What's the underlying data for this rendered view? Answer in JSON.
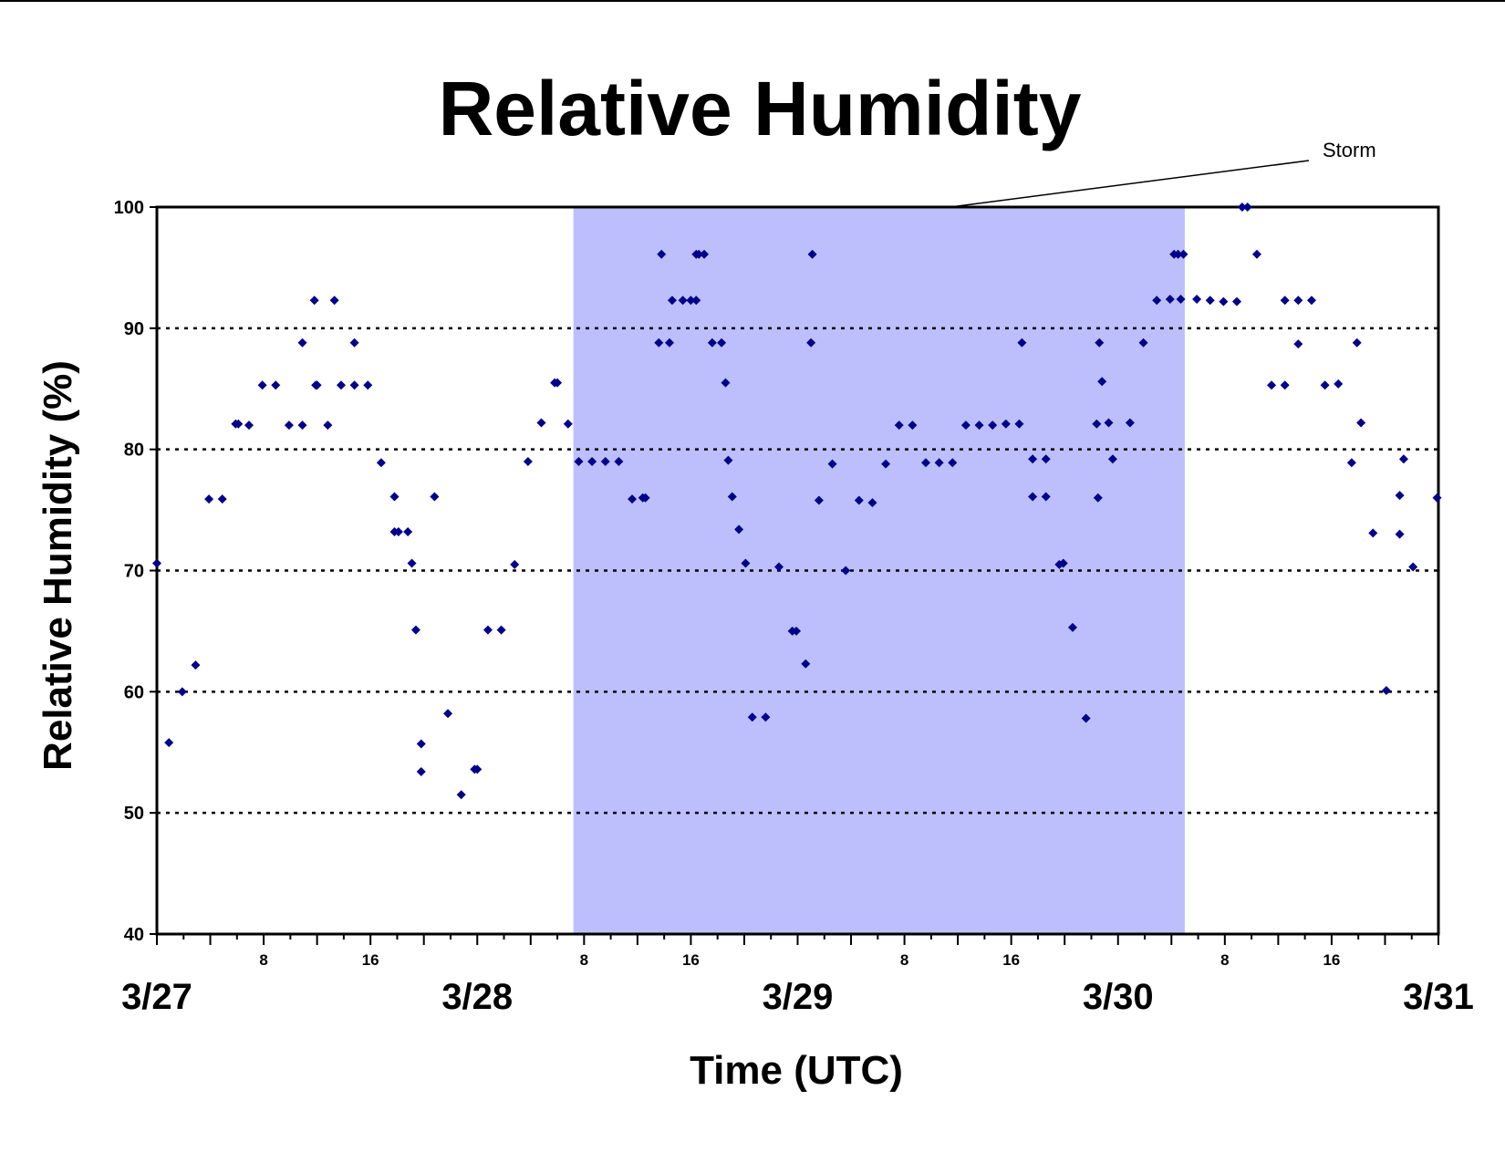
{
  "chart_data": {
    "type": "scatter",
    "title": "Relative Humidity",
    "xlabel": "Time (UTC)",
    "ylabel": "Relative Humidity (%)",
    "ylim": [
      40,
      100
    ],
    "yticks": [
      40,
      50,
      60,
      70,
      80,
      90,
      100
    ],
    "xlim_hours": [
      0,
      96
    ],
    "date_labels": [
      {
        "label": "3/27",
        "hour": 0
      },
      {
        "label": "3/28",
        "hour": 24
      },
      {
        "label": "3/29",
        "hour": 48
      },
      {
        "label": "3/30",
        "hour": 72
      },
      {
        "label": "3/31",
        "hour": 96
      }
    ],
    "hour_tick_labels": [
      {
        "label": "8",
        "hour": 8
      },
      {
        "label": "16",
        "hour": 16
      },
      {
        "label": "8",
        "hour": 32
      },
      {
        "label": "16",
        "hour": 40
      },
      {
        "label": "8",
        "hour": 56
      },
      {
        "label": "16",
        "hour": 64
      },
      {
        "label": "8",
        "hour": 80
      },
      {
        "label": "16",
        "hour": 88
      }
    ],
    "grid": "horizontal dotted at 50, 60, 70, 80, 90",
    "marker_color": "#00008B",
    "highlight": {
      "label": "Storm",
      "start_hour": 31.2,
      "end_hour": 77,
      "color": "#BCBFFB"
    },
    "points": [
      [
        0.0,
        70.6
      ],
      [
        0.9,
        55.8
      ],
      [
        1.9,
        60.0
      ],
      [
        2.9,
        62.2
      ],
      [
        3.9,
        75.9
      ],
      [
        4.9,
        75.9
      ],
      [
        5.9,
        82.1
      ],
      [
        6.1,
        82.1
      ],
      [
        6.9,
        82.0
      ],
      [
        7.9,
        85.3
      ],
      [
        8.9,
        85.3
      ],
      [
        9.9,
        82.0
      ],
      [
        10.9,
        82.0
      ],
      [
        10.9,
        88.8
      ],
      [
        11.8,
        92.3
      ],
      [
        11.9,
        85.3
      ],
      [
        12.0,
        85.3
      ],
      [
        12.8,
        82.0
      ],
      [
        13.3,
        92.3
      ],
      [
        13.8,
        85.3
      ],
      [
        14.8,
        88.8
      ],
      [
        14.8,
        85.3
      ],
      [
        15.8,
        85.3
      ],
      [
        16.8,
        78.9
      ],
      [
        17.8,
        76.1
      ],
      [
        17.8,
        73.2
      ],
      [
        18.1,
        73.2
      ],
      [
        18.8,
        73.2
      ],
      [
        19.1,
        70.6
      ],
      [
        19.4,
        65.1
      ],
      [
        19.8,
        55.7
      ],
      [
        19.8,
        53.4
      ],
      [
        20.8,
        76.1
      ],
      [
        21.8,
        58.2
      ],
      [
        22.8,
        51.5
      ],
      [
        23.8,
        53.6
      ],
      [
        24.0,
        53.6
      ],
      [
        24.8,
        65.1
      ],
      [
        25.8,
        65.1
      ],
      [
        26.8,
        70.5
      ],
      [
        27.8,
        79.0
      ],
      [
        28.8,
        82.2
      ],
      [
        29.8,
        85.5
      ],
      [
        30.0,
        85.5
      ],
      [
        30.8,
        82.1
      ],
      [
        31.6,
        79.0
      ],
      [
        32.6,
        79.0
      ],
      [
        33.6,
        79.0
      ],
      [
        34.6,
        79.0
      ],
      [
        35.6,
        75.9
      ],
      [
        36.4,
        76.0
      ],
      [
        36.6,
        76.0
      ],
      [
        37.6,
        88.8
      ],
      [
        37.8,
        96.1
      ],
      [
        38.4,
        88.8
      ],
      [
        38.6,
        92.3
      ],
      [
        39.4,
        92.3
      ],
      [
        40.0,
        92.3
      ],
      [
        40.4,
        92.3
      ],
      [
        40.4,
        96.1
      ],
      [
        40.6,
        96.1
      ],
      [
        41.0,
        96.1
      ],
      [
        41.6,
        88.8
      ],
      [
        42.3,
        88.8
      ],
      [
        42.6,
        85.5
      ],
      [
        42.8,
        79.1
      ],
      [
        43.1,
        76.1
      ],
      [
        43.6,
        73.4
      ],
      [
        44.1,
        70.6
      ],
      [
        44.6,
        57.9
      ],
      [
        45.6,
        57.9
      ],
      [
        46.6,
        70.3
      ],
      [
        47.6,
        65.0
      ],
      [
        47.9,
        65.0
      ],
      [
        48.6,
        62.3
      ],
      [
        49.0,
        88.8
      ],
      [
        49.1,
        96.1
      ],
      [
        49.6,
        75.8
      ],
      [
        50.6,
        78.8
      ],
      [
        51.6,
        70.0
      ],
      [
        52.6,
        75.8
      ],
      [
        53.6,
        75.6
      ],
      [
        54.6,
        78.8
      ],
      [
        55.6,
        82.0
      ],
      [
        56.6,
        82.0
      ],
      [
        57.6,
        78.9
      ],
      [
        58.6,
        78.9
      ],
      [
        59.6,
        78.9
      ],
      [
        60.6,
        82.0
      ],
      [
        61.6,
        82.0
      ],
      [
        62.6,
        82.0
      ],
      [
        63.6,
        82.1
      ],
      [
        64.6,
        82.1
      ],
      [
        64.8,
        88.8
      ],
      [
        65.6,
        79.2
      ],
      [
        65.6,
        76.1
      ],
      [
        66.6,
        79.2
      ],
      [
        66.6,
        76.1
      ],
      [
        67.6,
        70.5
      ],
      [
        67.9,
        70.6
      ],
      [
        68.6,
        65.3
      ],
      [
        69.6,
        57.8
      ],
      [
        70.4,
        82.1
      ],
      [
        70.5,
        76.0
      ],
      [
        70.6,
        88.8
      ],
      [
        70.8,
        85.6
      ],
      [
        71.3,
        82.2
      ],
      [
        71.6,
        79.2
      ],
      [
        72.9,
        82.2
      ],
      [
        73.9,
        88.8
      ],
      [
        74.9,
        92.3
      ],
      [
        75.9,
        92.4
      ],
      [
        76.2,
        96.1
      ],
      [
        76.5,
        96.1
      ],
      [
        76.7,
        92.4
      ],
      [
        76.9,
        96.1
      ],
      [
        77.9,
        92.4
      ],
      [
        78.9,
        92.3
      ],
      [
        79.9,
        92.2
      ],
      [
        80.9,
        92.2
      ],
      [
        81.3,
        100.0
      ],
      [
        81.7,
        100.0
      ],
      [
        82.4,
        96.1
      ],
      [
        83.5,
        85.3
      ],
      [
        84.5,
        85.3
      ],
      [
        84.5,
        92.3
      ],
      [
        85.5,
        88.7
      ],
      [
        85.5,
        92.3
      ],
      [
        86.5,
        92.3
      ],
      [
        87.5,
        85.3
      ],
      [
        88.5,
        85.4
      ],
      [
        89.5,
        78.9
      ],
      [
        89.9,
        88.8
      ],
      [
        90.2,
        82.2
      ],
      [
        91.1,
        73.1
      ],
      [
        92.1,
        60.1
      ],
      [
        93.1,
        73.0
      ],
      [
        93.1,
        76.2
      ],
      [
        93.4,
        79.2
      ],
      [
        94.1,
        70.3
      ],
      [
        95.9,
        76.0
      ]
    ]
  }
}
